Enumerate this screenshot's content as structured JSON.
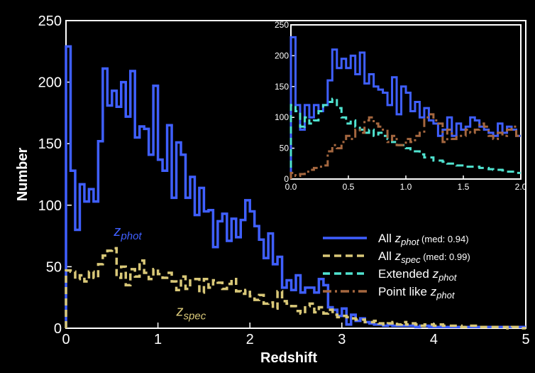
{
  "colors": {
    "background": "#000000",
    "frame": "#ffffff",
    "phot": "#3f5fff",
    "spec": "#d9c878",
    "extended": "#50e3d0",
    "pointlike": "#a5673f"
  },
  "chart_data": [
    {
      "id": "main",
      "type": "line",
      "step": true,
      "xlabel": "Redshift",
      "ylabel": "Number",
      "xlim": [
        0,
        5
      ],
      "ylim": [
        0,
        250
      ],
      "xticks": [
        "0",
        "1",
        "2",
        "3",
        "4",
        "5"
      ],
      "yticks": [
        "0",
        "50",
        "100",
        "150",
        "200",
        "250"
      ],
      "bin_width": 0.05,
      "annotations": [
        {
          "main": "z",
          "sub": "phot",
          "color": "#3f5fff",
          "at": [
            0.52,
            75
          ]
        },
        {
          "main": "z",
          "sub": "spec",
          "color": "#d9c878",
          "at": [
            1.2,
            10
          ]
        }
      ],
      "legend": {
        "placement": "lower-right",
        "entries": [
          {
            "prefix": "All ",
            "z": "z",
            "sub": "phot",
            "suffix": " (med: 0.94)",
            "color": "#3f5fff",
            "dash": "solid"
          },
          {
            "prefix": "All ",
            "z": "z",
            "sub": "spec",
            "suffix": " (med: 0.99)",
            "color": "#d9c878",
            "dash": "dashed"
          },
          {
            "prefix": "Extended ",
            "z": "z",
            "sub": "phot",
            "suffix": "",
            "color": "#50e3d0",
            "dash": "dashed"
          },
          {
            "prefix": "Point like ",
            "z": "z",
            "sub": "phot",
            "suffix": "",
            "color": "#a5673f",
            "dash": "dashdot"
          }
        ]
      },
      "series": [
        {
          "name": "All z_phot",
          "color": "#3f5fff",
          "values": [
            229,
            128,
            80,
            117,
            103,
            113,
            103,
            152,
            211,
            181,
            193,
            180,
            200,
            172,
            209,
            155,
            164,
            162,
            141,
            197,
            137,
            128,
            165,
            106,
            151,
            141,
            106,
            123,
            92,
            114,
            95,
            96,
            66,
            87,
            93,
            71,
            89,
            74,
            88,
            104,
            95,
            83,
            72,
            57,
            77,
            52,
            58,
            33,
            39,
            31,
            43,
            29,
            33,
            33,
            29,
            40,
            35,
            17,
            15,
            10,
            16,
            3,
            11,
            6,
            8,
            5,
            4,
            3,
            3,
            2,
            3,
            2,
            2,
            2,
            2,
            2,
            1,
            2,
            2,
            1,
            1,
            1,
            1,
            1,
            1,
            1,
            1,
            1,
            1,
            1,
            1,
            1,
            1,
            1,
            1,
            1,
            1,
            1,
            1,
            1
          ]
        },
        {
          "name": "All z_spec",
          "color": "#d9c878",
          "values": [
            47,
            46,
            40,
            43,
            38,
            46,
            41,
            52,
            59,
            63,
            65,
            41,
            50,
            35,
            48,
            42,
            55,
            45,
            40,
            48,
            44,
            41,
            45,
            38,
            31,
            42,
            32,
            40,
            40,
            29,
            40,
            33,
            39,
            37,
            32,
            36,
            40,
            30,
            28,
            31,
            26,
            23,
            27,
            20,
            21,
            16,
            30,
            22,
            20,
            18,
            14,
            12,
            18,
            20,
            13,
            17,
            12,
            15,
            11,
            9,
            10,
            9,
            8,
            7,
            7,
            5,
            5,
            6,
            4,
            3,
            4,
            5,
            3,
            5,
            3,
            4,
            3,
            2,
            3,
            3,
            2,
            3,
            2,
            2,
            2,
            2,
            1,
            2,
            2,
            2,
            1,
            1,
            1,
            1,
            1,
            1,
            0,
            1,
            1,
            0
          ]
        }
      ]
    },
    {
      "id": "inset",
      "type": "line",
      "step": true,
      "xlim": [
        0,
        2
      ],
      "ylim": [
        0,
        250
      ],
      "xticks": [
        "0.0",
        "0.5",
        "1.0",
        "1.5",
        "2.0"
      ],
      "yticks": [
        "0",
        "50",
        "100",
        "150",
        "200",
        "250"
      ],
      "bin_width": 0.04,
      "series": [
        {
          "name": "All z_phot",
          "color": "#3f5fff",
          "values": [
            230,
            120,
            80,
            120,
            100,
            120,
            110,
            120,
            160,
            210,
            180,
            195,
            180,
            200,
            170,
            205,
            155,
            170,
            150,
            145,
            140,
            120,
            165,
            105,
            150,
            140,
            110,
            125,
            100,
            115,
            95,
            90,
            70,
            80,
            100,
            70,
            90,
            80,
            85,
            100,
            95,
            85,
            80,
            75,
            70,
            90,
            75,
            85,
            80,
            70
          ]
        },
        {
          "name": "Extended z_phot",
          "color": "#50e3d0",
          "values": [
            120,
            110,
            85,
            100,
            90,
            95,
            110,
            120,
            125,
            130,
            115,
            100,
            90,
            95,
            85,
            80,
            75,
            80,
            70,
            75,
            70,
            65,
            60,
            55,
            55,
            50,
            45,
            45,
            40,
            35,
            35,
            30,
            30,
            28,
            25,
            25,
            22,
            22,
            20,
            20,
            20,
            18,
            18,
            16,
            15,
            15,
            14,
            12,
            12,
            10
          ]
        },
        {
          "name": "Point like z_phot",
          "color": "#a5673f",
          "values": [
            10,
            5,
            8,
            12,
            15,
            18,
            20,
            22,
            45,
            55,
            50,
            60,
            70,
            65,
            80,
            75,
            95,
            100,
            90,
            85,
            80,
            60,
            70,
            55,
            55,
            65,
            60,
            70,
            75,
            100,
            105,
            95,
            90,
            60,
            80,
            65,
            70,
            70,
            80,
            75,
            80,
            90,
            85,
            70,
            65,
            75,
            70,
            80,
            85,
            70
          ]
        }
      ]
    }
  ]
}
